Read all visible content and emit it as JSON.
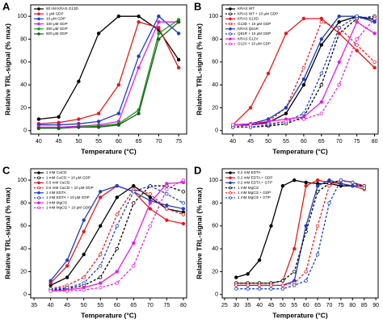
{
  "chart_data": [
    {
      "type": "line",
      "label": "A",
      "xlabel": "Temperature (°C)",
      "ylabel": "Relative TRL-signal (% max)",
      "xlim": [
        38,
        77
      ],
      "xticks": [
        40,
        45,
        50,
        55,
        60,
        65,
        70,
        75
      ],
      "ylim": [
        -3,
        110
      ],
      "yticks": [
        0,
        20,
        40,
        60,
        80,
        100
      ],
      "legend": "upper left",
      "x": [
        40,
        45,
        50,
        55,
        60,
        65,
        70,
        75
      ],
      "series": [
        {
          "name": "50 nM KRAS G13D",
          "color": "#000000",
          "dash": false,
          "values": [
            10,
            12,
            43,
            85,
            100,
            100,
            88,
            62
          ]
        },
        {
          "name": "1 μM GDP",
          "color": "#e41a1c",
          "dash": false,
          "values": [
            6,
            7,
            10,
            15,
            40,
            95,
            90,
            55
          ]
        },
        {
          "name": "10 μM GDP",
          "color": "#1f3fbf",
          "dash": false,
          "values": [
            5,
            5,
            6,
            8,
            15,
            65,
            100,
            85
          ]
        },
        {
          "name": "100 μM GDP",
          "color": "#e020e0",
          "dash": false,
          "values": [
            3,
            3,
            4,
            5,
            8,
            55,
            95,
            95
          ]
        },
        {
          "name": "300 μM GDP",
          "color": "#1a9a1a",
          "dash": false,
          "values": [
            2,
            2,
            3,
            4,
            6,
            18,
            85,
            97
          ]
        },
        {
          "name": "600 μM GDP",
          "color": "#1f5a1f",
          "dash": false,
          "values": [
            2,
            2,
            3,
            3,
            5,
            15,
            80,
            95
          ]
        }
      ]
    },
    {
      "type": "line",
      "label": "B",
      "xlabel": "Temperature (°C)",
      "ylabel": "Relative TRL-signal (% max)",
      "xlim": [
        37,
        81
      ],
      "xticks": [
        40,
        45,
        50,
        55,
        60,
        65,
        70,
        75,
        80
      ],
      "ylim": [
        -3,
        110
      ],
      "yticks": [
        0,
        20,
        40,
        60,
        80,
        100
      ],
      "legend": "upper left",
      "x": [
        40,
        45,
        50,
        55,
        60,
        65,
        70,
        75,
        80
      ],
      "series": [
        {
          "name": "KRAS WT",
          "color": "#000000",
          "dash": false,
          "values": [
            5,
            5,
            7,
            15,
            40,
            75,
            95,
            100,
            97
          ]
        },
        {
          "name": "KRAS WT + 10 μM GDP",
          "color": "#000000",
          "dash": true,
          "values": [
            3,
            3,
            4,
            6,
            12,
            40,
            85,
            98,
            100
          ]
        },
        {
          "name": "KRAS G13D",
          "color": "#e41a1c",
          "dash": false,
          "values": [
            5,
            20,
            50,
            85,
            98,
            98,
            85,
            70,
            55
          ]
        },
        {
          "name": "G13D + 10 μM GDP",
          "color": "#e41a1c",
          "dash": true,
          "values": [
            3,
            5,
            8,
            20,
            55,
            95,
            90,
            75,
            60
          ]
        },
        {
          "name": "KRAS Q61R",
          "color": "#1f3fbf",
          "dash": false,
          "values": [
            5,
            6,
            10,
            20,
            45,
            80,
            100,
            100,
            95
          ]
        },
        {
          "name": "Q61R + 10 μM GDP",
          "color": "#1f3fbf",
          "dash": true,
          "values": [
            3,
            3,
            5,
            8,
            15,
            50,
            90,
            100,
            98
          ]
        },
        {
          "name": "KRAS G12V",
          "color": "#e020e0",
          "dash": false,
          "values": [
            5,
            6,
            8,
            10,
            12,
            25,
            60,
            95,
            85
          ]
        },
        {
          "name": "G12V + 10 μM GDP",
          "color": "#e020e0",
          "dash": true,
          "values": [
            5,
            5,
            6,
            8,
            10,
            15,
            40,
            80,
            98
          ]
        }
      ]
    },
    {
      "type": "line",
      "label": "C",
      "xlabel": "Temperature (°C)",
      "ylabel": "Relative TRL-signal (% max)",
      "xlim": [
        34,
        81
      ],
      "xticks": [
        35,
        40,
        45,
        50,
        55,
        60,
        65,
        70,
        75,
        80
      ],
      "ylim": [
        -3,
        110
      ],
      "yticks": [
        0,
        20,
        40,
        60,
        80,
        100
      ],
      "legend": "upper left",
      "x": [
        40,
        45,
        50,
        55,
        60,
        65,
        70,
        75,
        80
      ],
      "series": [
        {
          "name": "1 mM CaCl2",
          "color": "#000000",
          "dash": false,
          "values": [
            8,
            15,
            35,
            60,
            85,
            95,
            85,
            75,
            72
          ]
        },
        {
          "name": "1 mM CaCl2 + 10 μM GDP",
          "color": "#000000",
          "dash": true,
          "values": [
            4,
            5,
            8,
            15,
            40,
            80,
            95,
            95,
            90
          ]
        },
        {
          "name": "0.5 mM CaCl2",
          "color": "#e41a1c",
          "dash": false,
          "values": [
            10,
            25,
            55,
            85,
            95,
            90,
            75,
            65,
            62
          ]
        },
        {
          "name": "0.5 mM CaCl2 + 10 μM GDP",
          "color": "#e41a1c",
          "dash": true,
          "values": [
            5,
            8,
            15,
            35,
            70,
            92,
            88,
            75,
            70
          ]
        },
        {
          "name": "1 mM EDTA",
          "color": "#1f3fbf",
          "dash": false,
          "values": [
            12,
            30,
            65,
            90,
            95,
            90,
            82,
            78,
            75
          ]
        },
        {
          "name": "1 mM EDTA + 10 μM GDP",
          "color": "#1f3fbf",
          "dash": true,
          "values": [
            5,
            6,
            10,
            25,
            60,
            90,
            95,
            88,
            80
          ]
        },
        {
          "name": "1 mM MgCl2",
          "color": "#e020e0",
          "dash": false,
          "values": [
            3,
            4,
            6,
            10,
            20,
            45,
            80,
            97,
            98
          ]
        },
        {
          "name": "1 mM MgCl2 + 10 μM GDP",
          "color": "#e020e0",
          "dash": true,
          "values": [
            3,
            3,
            4,
            6,
            10,
            25,
            60,
            92,
            100
          ]
        }
      ]
    },
    {
      "type": "line",
      "label": "D",
      "xlabel": "Temperature (°C)",
      "ylabel": "Relative TRL-signal (% max)",
      "xlim": [
        24,
        91
      ],
      "xticks": [
        25,
        30,
        35,
        40,
        45,
        50,
        55,
        60,
        65,
        70,
        75,
        80,
        85,
        90
      ],
      "ylim": [
        -3,
        110
      ],
      "yticks": [
        0,
        20,
        40,
        60,
        80,
        100
      ],
      "legend": "upper left",
      "x": [
        30,
        35,
        40,
        45,
        50,
        55,
        60,
        65,
        70,
        75,
        80,
        85
      ],
      "series": [
        {
          "name": "0.2 mM EDTA",
          "color": "#000000",
          "dash": false,
          "values": [
            15,
            18,
            30,
            60,
            95,
            100,
            98,
            97,
            97,
            95,
            95,
            95
          ]
        },
        {
          "name": "0.2 mM EDTA + GDP",
          "color": "#e41a1c",
          "dash": false,
          "values": [
            10,
            10,
            10,
            10,
            12,
            40,
            95,
            100,
            98,
            97,
            95,
            92
          ]
        },
        {
          "name": "0.2 mM EDTA + GTP",
          "color": "#1f3fbf",
          "dash": false,
          "values": [
            8,
            8,
            8,
            8,
            8,
            12,
            60,
            95,
            100,
            97,
            95,
            95
          ]
        },
        {
          "name": "1 mM MgCl2",
          "color": "#000000",
          "dash": true,
          "values": [
            10,
            10,
            10,
            10,
            12,
            20,
            55,
            90,
            97,
            100,
            98,
            95
          ]
        },
        {
          "name": "1 mM MgCl2 + GDP",
          "color": "#e41a1c",
          "dash": true,
          "values": [
            8,
            8,
            8,
            8,
            8,
            10,
            20,
            60,
            95,
            100,
            98,
            95
          ]
        },
        {
          "name": "1 mM MgCl2 + GTP",
          "color": "#1f3fbf",
          "dash": true,
          "values": [
            5,
            5,
            5,
            5,
            5,
            8,
            12,
            35,
            80,
            100,
            98,
            93
          ]
        }
      ]
    }
  ]
}
